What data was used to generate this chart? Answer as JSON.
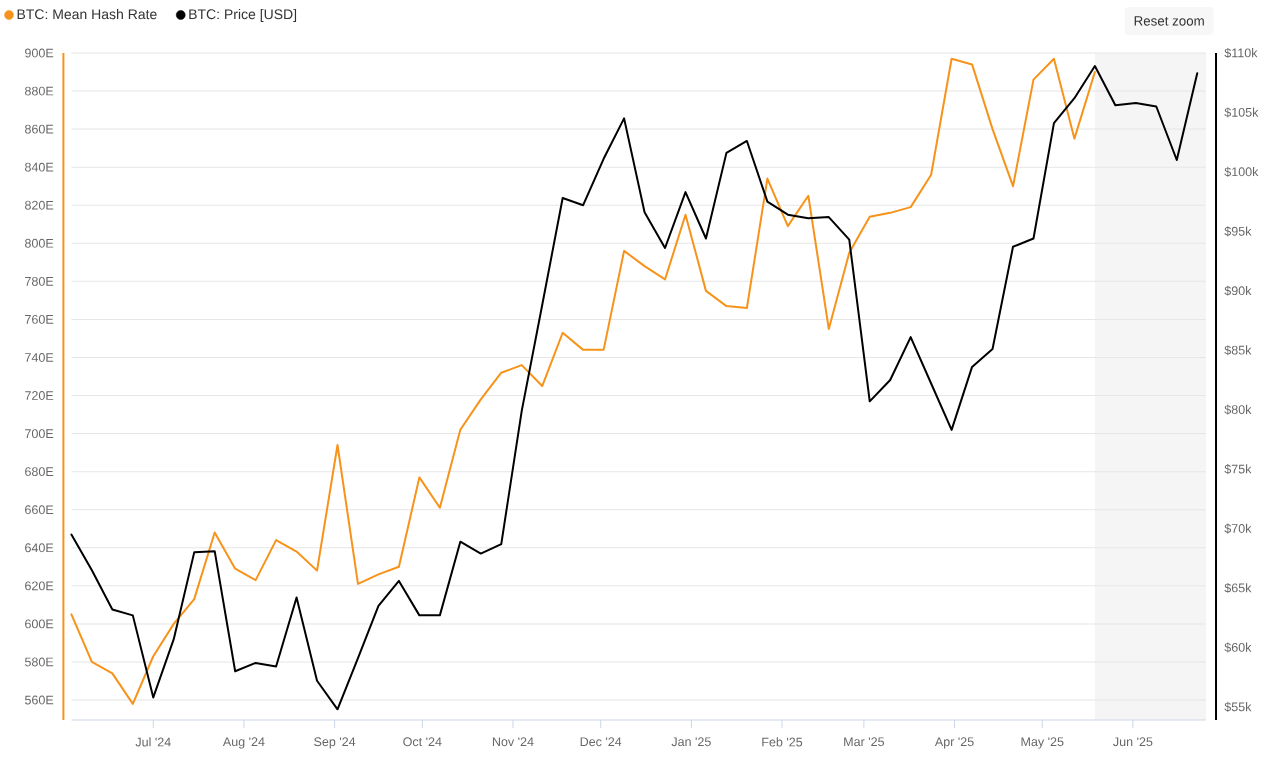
{
  "chart_data": {
    "type": "line",
    "x": [
      "2024-06-03",
      "2024-06-10",
      "2024-06-17",
      "2024-06-24",
      "2024-07-01",
      "2024-07-08",
      "2024-07-15",
      "2024-07-22",
      "2024-07-29",
      "2024-08-05",
      "2024-08-12",
      "2024-08-19",
      "2024-08-26",
      "2024-09-02",
      "2024-09-09",
      "2024-09-16",
      "2024-09-23",
      "2024-09-30",
      "2024-10-07",
      "2024-10-14",
      "2024-10-21",
      "2024-10-28",
      "2024-11-04",
      "2024-11-11",
      "2024-11-18",
      "2024-11-25",
      "2024-12-02",
      "2024-12-09",
      "2024-12-16",
      "2024-12-23",
      "2024-12-30",
      "2025-01-06",
      "2025-01-13",
      "2025-01-20",
      "2025-01-27",
      "2025-02-03",
      "2025-02-10",
      "2025-02-17",
      "2025-02-24",
      "2025-03-03",
      "2025-03-10",
      "2025-03-17",
      "2025-03-24",
      "2025-03-31",
      "2025-04-07",
      "2025-04-14",
      "2025-04-21",
      "2025-04-28",
      "2025-05-05",
      "2025-05-12",
      "2025-05-19",
      "2025-05-26",
      "2025-06-02",
      "2025-06-09",
      "2025-06-16",
      "2025-06-23"
    ],
    "series": [
      {
        "name": "BTC: Mean Hash Rate",
        "color": "#f7931a",
        "values": [
          605,
          580,
          574,
          558,
          583,
          600,
          613,
          648,
          629,
          623,
          644,
          638,
          628,
          694,
          621,
          626,
          630,
          677,
          661,
          702,
          718,
          732,
          736,
          725,
          753,
          744,
          744,
          796,
          788,
          781,
          815,
          775,
          767,
          766,
          834,
          809,
          825,
          755,
          795,
          814,
          816,
          819,
          836,
          897,
          894,
          860,
          830,
          886,
          897,
          855,
          890,
          null,
          null,
          null,
          null,
          null
        ]
      },
      {
        "name": "BTC: Price [USD]",
        "color": "#000000",
        "axis": "y2",
        "values": [
          69.5,
          66.5,
          63.2,
          62.7,
          55.8,
          60.7,
          68.0,
          68.1,
          58.0,
          58.7,
          58.4,
          64.2,
          57.2,
          54.8,
          59.1,
          63.5,
          65.6,
          62.7,
          62.7,
          68.9,
          67.9,
          68.7,
          79.9,
          88.8,
          97.8,
          97.2,
          101.1,
          104.5,
          96.6,
          93.6,
          98.3,
          94.4,
          101.6,
          102.6,
          97.5,
          96.4,
          96.1,
          96.2,
          94.3,
          80.7,
          82.5,
          86.1,
          82.2,
          78.3,
          83.6,
          85.1,
          93.7,
          94.4,
          104.1,
          106.2,
          108.9,
          105.6,
          105.8,
          105.5,
          101.0,
          108.3
        ]
      }
    ],
    "xlim": [
      "2024-06-03",
      "2025-06-26"
    ],
    "xticks": [
      {
        "value": "2024-07-01",
        "label": "Jul '24"
      },
      {
        "value": "2024-08-01",
        "label": "Aug '24"
      },
      {
        "value": "2024-09-01",
        "label": "Sep '24"
      },
      {
        "value": "2024-10-01",
        "label": "Oct '24"
      },
      {
        "value": "2024-11-01",
        "label": "Nov '24"
      },
      {
        "value": "2024-12-01",
        "label": "Dec '24"
      },
      {
        "value": "2025-01-01",
        "label": "Jan '25"
      },
      {
        "value": "2025-02-01",
        "label": "Feb '25"
      },
      {
        "value": "2025-03-01",
        "label": "Mar '25"
      },
      {
        "value": "2025-04-01",
        "label": "Apr '25"
      },
      {
        "value": "2025-05-01",
        "label": "May '25"
      },
      {
        "value": "2025-06-01",
        "label": "Jun '25"
      }
    ],
    "ylim": [
      549.5,
      900
    ],
    "yticks": [
      {
        "value": 560,
        "label": "560E"
      },
      {
        "value": 580,
        "label": "580E"
      },
      {
        "value": 600,
        "label": "600E"
      },
      {
        "value": 620,
        "label": "620E"
      },
      {
        "value": 640,
        "label": "640E"
      },
      {
        "value": 660,
        "label": "660E"
      },
      {
        "value": 680,
        "label": "680E"
      },
      {
        "value": 700,
        "label": "700E"
      },
      {
        "value": 720,
        "label": "720E"
      },
      {
        "value": 740,
        "label": "740E"
      },
      {
        "value": 760,
        "label": "760E"
      },
      {
        "value": 780,
        "label": "780E"
      },
      {
        "value": 800,
        "label": "800E"
      },
      {
        "value": 820,
        "label": "820E"
      },
      {
        "value": 840,
        "label": "840E"
      },
      {
        "value": 860,
        "label": "860E"
      },
      {
        "value": 880,
        "label": "880E"
      },
      {
        "value": 900,
        "label": "900E"
      }
    ],
    "y2lim": [
      53.9,
      110
    ],
    "y2ticks": [
      {
        "value": 55,
        "label": "$55k"
      },
      {
        "value": 60,
        "label": "$60k"
      },
      {
        "value": 65,
        "label": "$65k"
      },
      {
        "value": 70,
        "label": "$70k"
      },
      {
        "value": 75,
        "label": "$75k"
      },
      {
        "value": 80,
        "label": "$80k"
      },
      {
        "value": 85,
        "label": "$85k"
      },
      {
        "value": 90,
        "label": "$90k"
      },
      {
        "value": 95,
        "label": "$95k"
      },
      {
        "value": 100,
        "label": "$100k"
      },
      {
        "value": 105,
        "label": "$105k"
      },
      {
        "value": 110,
        "label": "$110k"
      }
    ],
    "bands": [
      {
        "axis": "x",
        "from": "2025-05-19",
        "to": "2025-06-26",
        "color": "#f5f5f5"
      }
    ],
    "grid": "y",
    "legend": "top left",
    "annotations": [
      "Reset zoom"
    ]
  }
}
